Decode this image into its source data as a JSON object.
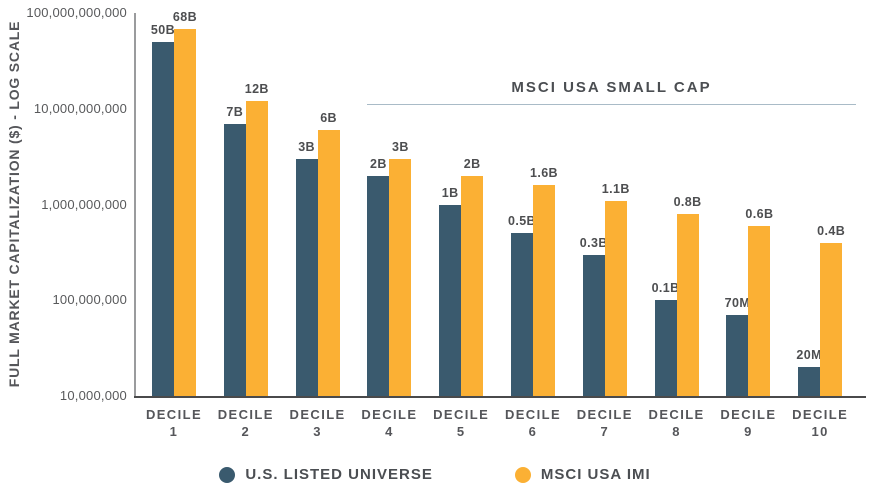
{
  "chart_data": {
    "type": "bar",
    "title": "",
    "ylabel": "FULL MARKET CAPITALIZATION ($) - LOG SCALE",
    "xlabel": "",
    "y_scale": "log",
    "ylim": [
      10000000,
      100000000000
    ],
    "grid": false,
    "legend_position": "bottom",
    "y_ticks": [
      {
        "value": 100000000000,
        "label": "100,000,000,000"
      },
      {
        "value": 10000000000,
        "label": "10,000,000,000"
      },
      {
        "value": 1000000000,
        "label": "1,000,000,000"
      },
      {
        "value": 100000000,
        "label": "100,000,000"
      },
      {
        "value": 10000000,
        "label": "10,000,000"
      }
    ],
    "categories": [
      "DECILE 1",
      "DECILE 2",
      "DECILE 3",
      "DECILE 4",
      "DECILE 5",
      "DECILE 6",
      "DECILE 7",
      "DECILE 8",
      "DECILE 9",
      "DECILE 10"
    ],
    "series": [
      {
        "name": "U.S. LISTED UNIVERSE",
        "color": "#3a5a6e",
        "values": [
          50000000000,
          7000000000,
          3000000000,
          2000000000,
          1000000000,
          500000000,
          300000000,
          100000000,
          70000000,
          20000000
        ],
        "labels": [
          "50B",
          "7B",
          "3B",
          "2B",
          "1B",
          "0.5B",
          "0.3B",
          "0.1B",
          "70M",
          "20M"
        ]
      },
      {
        "name": "MSCI USA IMI",
        "color": "#fbb034",
        "values": [
          68000000000,
          12000000000,
          6000000000,
          3000000000,
          2000000000,
          1600000000,
          1100000000,
          800000000,
          600000000,
          400000000
        ],
        "labels": [
          "68B",
          "12B",
          "6B",
          "3B",
          "2B",
          "1.6B",
          "1.1B",
          "0.8B",
          "0.6B",
          "0.4B"
        ]
      }
    ],
    "annotation": {
      "text": "MSCI USA SMALL CAP",
      "covers_categories": [
        "DECILE 4",
        "DECILE 10"
      ]
    },
    "legend": [
      {
        "label": "U.S. LISTED UNIVERSE",
        "color": "#3a5a6e"
      },
      {
        "label": "MSCI USA IMI",
        "color": "#fbb034"
      }
    ]
  }
}
